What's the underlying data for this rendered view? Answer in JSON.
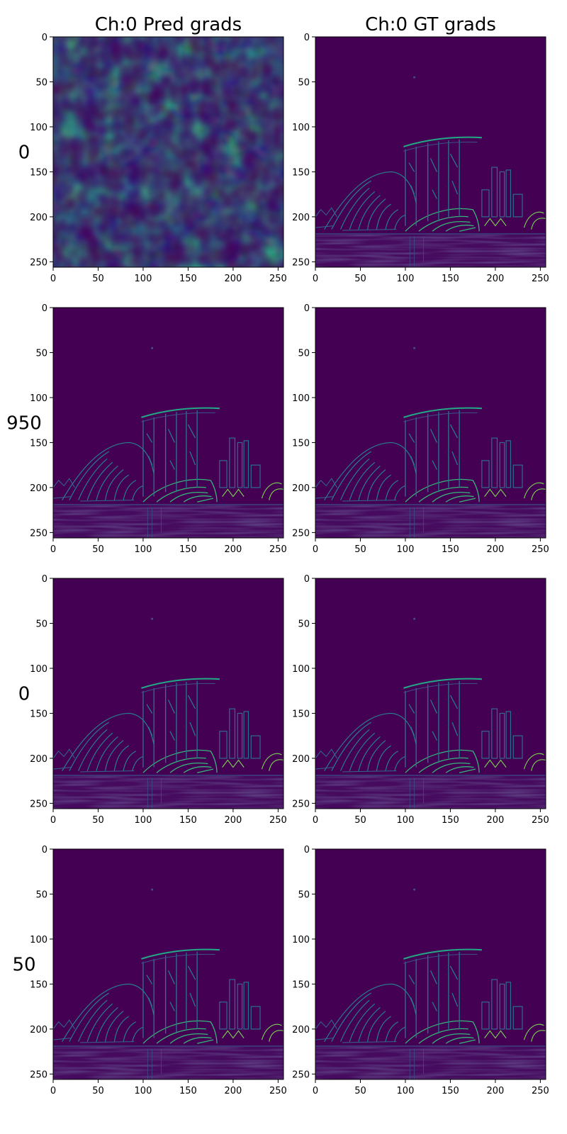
{
  "colors": {
    "viridis_dark": "#440154",
    "viridis_low": "#3b528b",
    "viridis_mid": "#21918c",
    "viridis_high": "#5ec962",
    "viridis_peak": "#fde725"
  },
  "chart_data": {
    "type": "heatmap",
    "column_titles": [
      "Ch:0 Pred grads",
      "Ch:0 GT grads"
    ],
    "row_labels": [
      "0",
      "950",
      "0",
      "50"
    ],
    "x_ticks": [
      0,
      50,
      100,
      150,
      200,
      250
    ],
    "y_ticks": [
      0,
      50,
      100,
      150,
      200,
      250
    ],
    "xlim": [
      0,
      256
    ],
    "ylim": [
      256,
      0
    ],
    "colormap": "viridis",
    "panels": [
      {
        "row": 0,
        "col": 0,
        "content": "noise"
      },
      {
        "row": 0,
        "col": 1,
        "content": "skyline"
      },
      {
        "row": 1,
        "col": 0,
        "content": "skyline"
      },
      {
        "row": 1,
        "col": 1,
        "content": "skyline"
      },
      {
        "row": 2,
        "col": 0,
        "content": "skyline"
      },
      {
        "row": 2,
        "col": 1,
        "content": "skyline"
      },
      {
        "row": 3,
        "col": 0,
        "content": "skyline"
      },
      {
        "row": 3,
        "col": 1,
        "content": "skyline"
      }
    ]
  }
}
